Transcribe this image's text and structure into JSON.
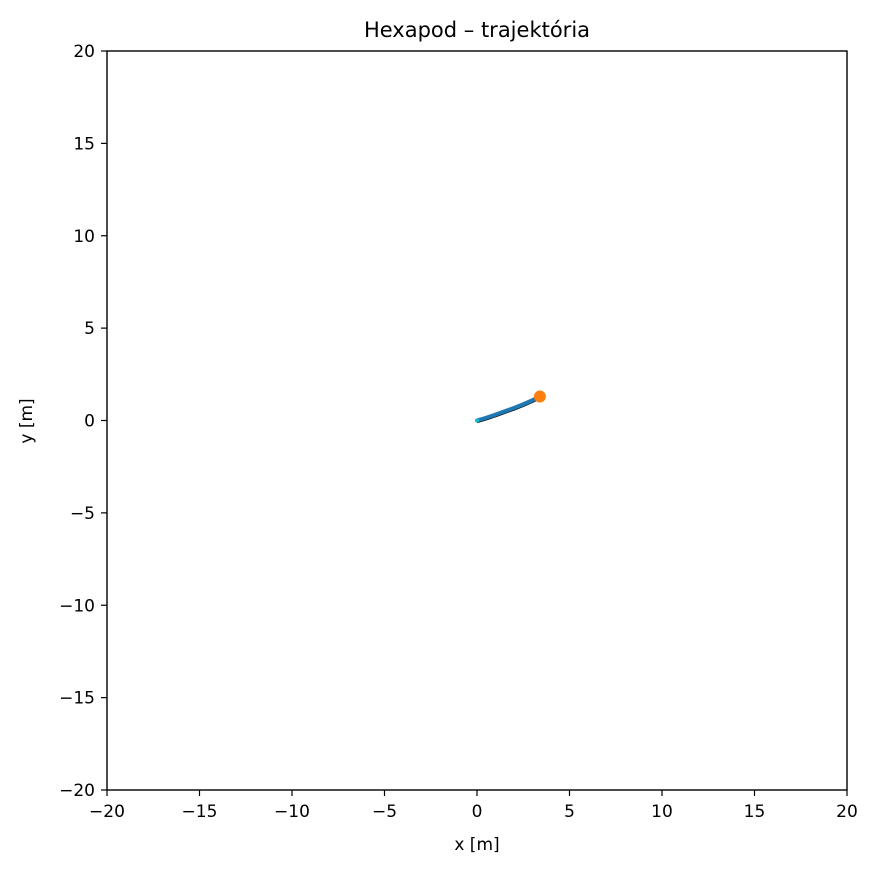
{
  "chart_data": {
    "type": "line",
    "title": "Hexapod – trajektória",
    "xlabel": "x [m]",
    "ylabel": "y [m]",
    "xlim": [
      -20,
      20
    ],
    "ylim": [
      -20,
      20
    ],
    "xticks": [
      -20,
      -15,
      -10,
      -5,
      0,
      5,
      10,
      15,
      20
    ],
    "yticks": [
      -20,
      -15,
      -10,
      -5,
      0,
      5,
      10,
      15,
      20
    ],
    "xtick_labels": [
      "−20",
      "−15",
      "−10",
      "−5",
      "0",
      "5",
      "10",
      "15",
      "20"
    ],
    "ytick_labels": [
      "−20",
      "−15",
      "−10",
      "−5",
      "0",
      "5",
      "10",
      "15",
      "20"
    ],
    "grid": false,
    "series": [
      {
        "kind": "path",
        "color": "#1f77b4",
        "x": [
          0.0,
          0.5,
          1.0,
          1.5,
          2.0,
          2.5,
          3.0,
          3.4
        ],
        "y": [
          0.0,
          0.15,
          0.32,
          0.5,
          0.68,
          0.88,
          1.1,
          1.3
        ]
      },
      {
        "kind": "current-position",
        "color": "#ff7f0e",
        "x": [
          3.4
        ],
        "y": [
          1.3
        ]
      }
    ]
  }
}
